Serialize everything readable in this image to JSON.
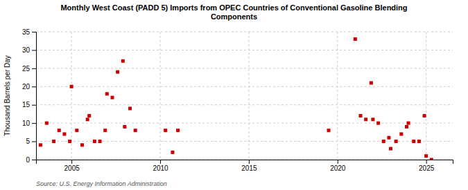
{
  "chart_data": {
    "type": "scatter",
    "title": "Monthly West Coast (PADD 5) Imports from OPEC Countries of Conventional Gasoline Blending\nComponents",
    "ylabel": "Thousand Barrels per Day",
    "source": "Source: U.S. Energy Information Administration",
    "color": "#cc0000",
    "marker": "square",
    "grid": true,
    "xlim": [
      2003.0,
      2026.5
    ],
    "ylim": [
      0,
      35
    ],
    "xticks": [
      2005,
      2010,
      2015,
      2020,
      2025
    ],
    "yticks": [
      0,
      5,
      10,
      15,
      20,
      25,
      30,
      35
    ],
    "x": [
      2003.25,
      2003.6,
      2004.0,
      2004.3,
      2004.6,
      2004.9,
      2005.0,
      2005.3,
      2005.6,
      2005.9,
      2006.0,
      2006.3,
      2006.6,
      2006.9,
      2007.0,
      2007.3,
      2007.6,
      2007.9,
      2008.0,
      2008.3,
      2008.6,
      2010.3,
      2010.7,
      2011.0,
      2019.5,
      2021.0,
      2021.3,
      2021.6,
      2021.9,
      2022.0,
      2022.3,
      2022.6,
      2022.9,
      2023.0,
      2023.3,
      2023.6,
      2023.9,
      2024.0,
      2024.3,
      2024.6,
      2024.9,
      2025.0,
      2025.3
    ],
    "values": [
      4,
      10,
      5,
      8,
      7,
      5,
      20,
      8,
      4,
      11,
      12,
      5,
      5,
      8,
      18,
      17,
      24,
      27,
      9,
      14,
      8,
      8,
      2,
      8,
      8,
      33,
      12,
      11,
      21,
      11,
      10,
      5,
      6,
      3,
      5,
      7,
      9,
      10,
      5,
      5,
      12,
      1,
      0
    ]
  }
}
